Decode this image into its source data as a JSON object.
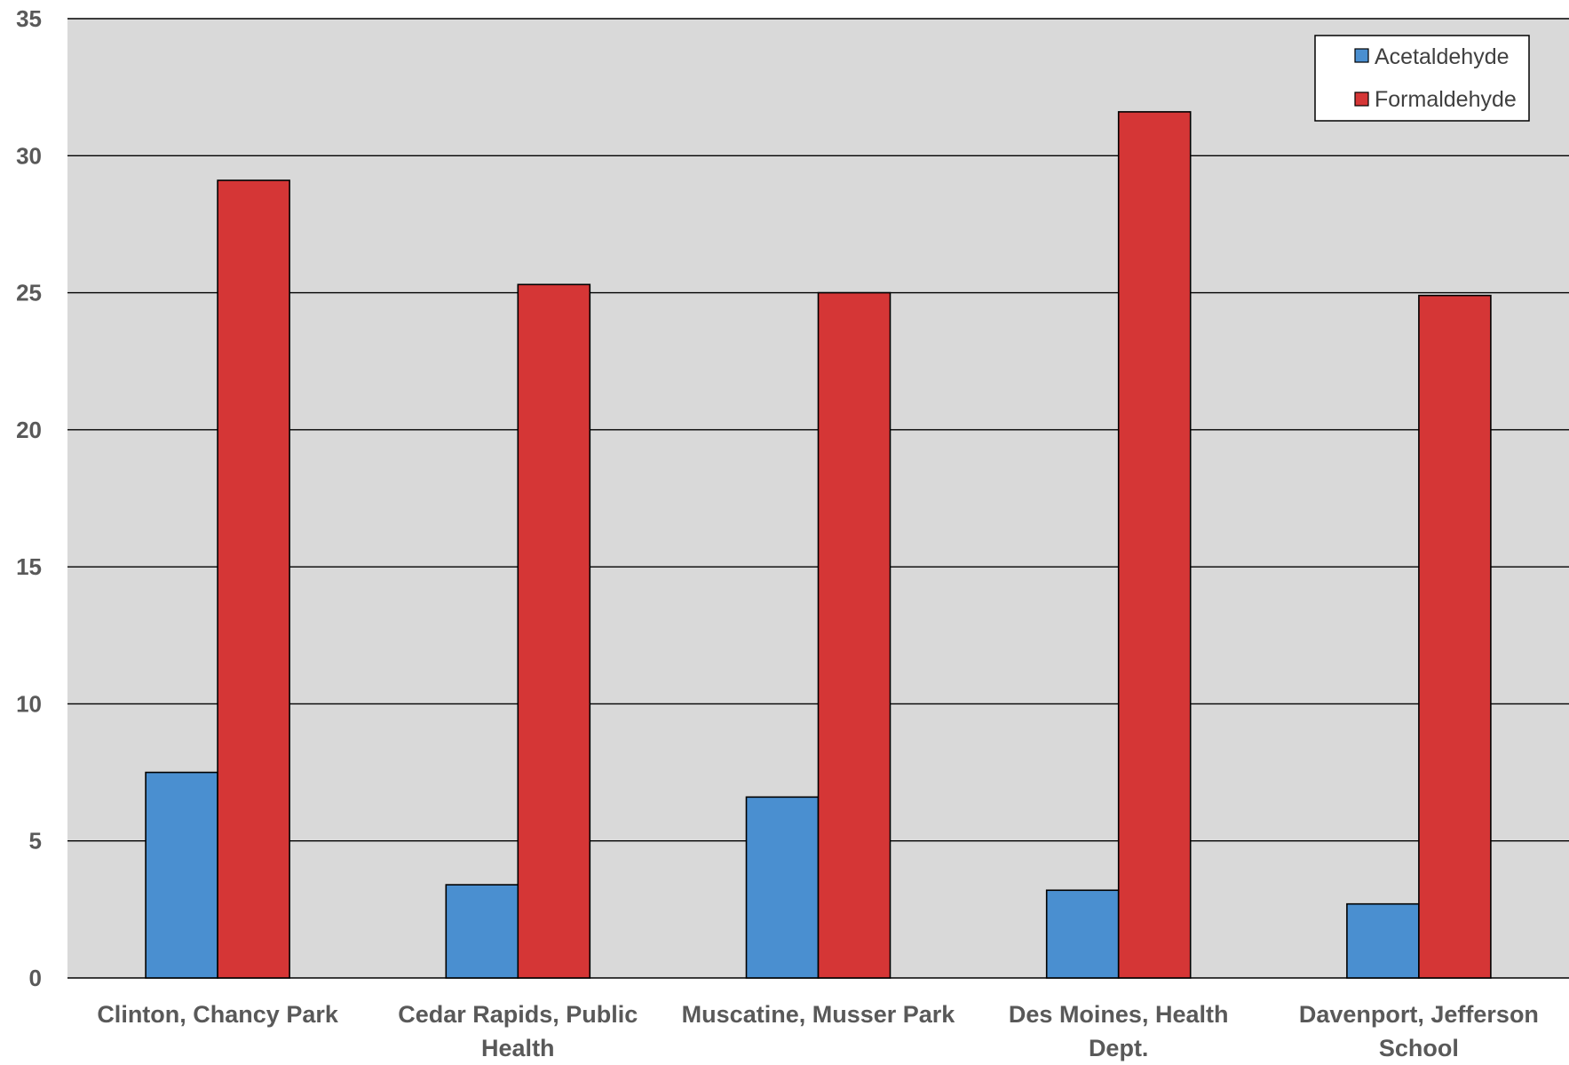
{
  "chart_data": {
    "type": "bar",
    "categories": [
      [
        "Clinton, Chancy Park"
      ],
      [
        "Cedar Rapids, Public",
        "Health"
      ],
      [
        "Muscatine, Musser Park"
      ],
      [
        "Des Moines, Health",
        "Dept."
      ],
      [
        "Davenport, Jefferson",
        "School"
      ]
    ],
    "series": [
      {
        "name": "Acetaldehyde",
        "color": "#4a8fd0",
        "values": [
          7.5,
          3.4,
          6.6,
          3.2,
          2.7
        ]
      },
      {
        "name": "Formaldehyde",
        "color": "#d53636",
        "values": [
          29.1,
          25.3,
          25.0,
          31.6,
          24.9
        ]
      }
    ],
    "yticks": [
      "0",
      "5",
      "10",
      "15",
      "20",
      "25",
      "30",
      "35"
    ],
    "ylim": [
      0,
      35
    ],
    "grid": true,
    "legend_position": "top-right",
    "plot_background": "#d9d9d9"
  }
}
